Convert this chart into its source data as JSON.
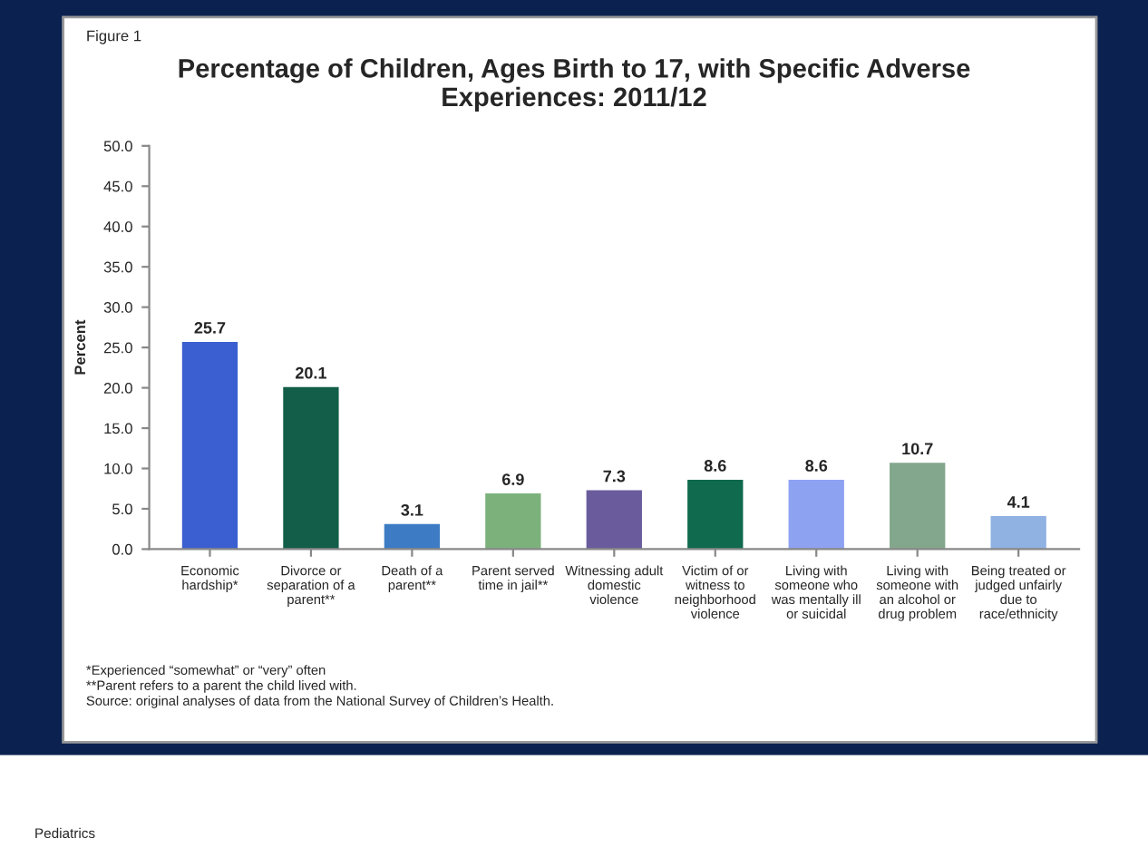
{
  "chart_data": {
    "type": "bar",
    "title": "Percentage of Children, Ages Birth to 17, with Specific Adverse\nExperiences: 2011/12",
    "ylabel": "Percent",
    "categories": [
      "Economic\nhardship*",
      "Divorce or\nseparation of a\nparent**",
      "Death of a\nparent**",
      "Parent served\ntime in jail**",
      "Witnessing adult\ndomestic\nviolence",
      "Victim of or\nwitness to\nneighborhood\nviolence",
      "Living with\nsomeone who\nwas mentally ill\nor suicidal",
      "Living with\nsomeone with\nan alcohol or\ndrug problem",
      "Being treated or\njudged unfairly\ndue to\nrace/ethnicity"
    ],
    "values": [
      25.7,
      20.1,
      3.1,
      6.9,
      7.3,
      8.6,
      8.6,
      10.7,
      4.1
    ],
    "colors": [
      "#3b5fd0",
      "#125e48",
      "#3d7cc4",
      "#7db17c",
      "#6a5c9c",
      "#0f6a4e",
      "#8ea2f2",
      "#82a78c",
      "#90b2e2"
    ],
    "data_labels": true,
    "ylim": [
      0,
      50
    ],
    "yticks": [
      {
        "value": 0,
        "label": "0.0"
      },
      {
        "value": 5,
        "label": "5.0"
      },
      {
        "value": 10,
        "label": "10.0"
      },
      {
        "value": 15,
        "label": "15.0"
      },
      {
        "value": 20,
        "label": "20.0"
      },
      {
        "value": 25,
        "label": "25.0"
      },
      {
        "value": 30,
        "label": "30.0"
      },
      {
        "value": 35,
        "label": "35.0"
      },
      {
        "value": 40,
        "label": "40.0"
      },
      {
        "value": 45,
        "label": "45.0"
      },
      {
        "value": 50,
        "label": "50.0"
      }
    ],
    "grid": false,
    "annotations": [
      "Figure 1",
      "*Experienced “somewhat” or “very” often\n**Parent refers to a parent the child lived with.\nSource: original analyses of data from the National Survey of Children’s Health.",
      "Pediatrics"
    ]
  }
}
